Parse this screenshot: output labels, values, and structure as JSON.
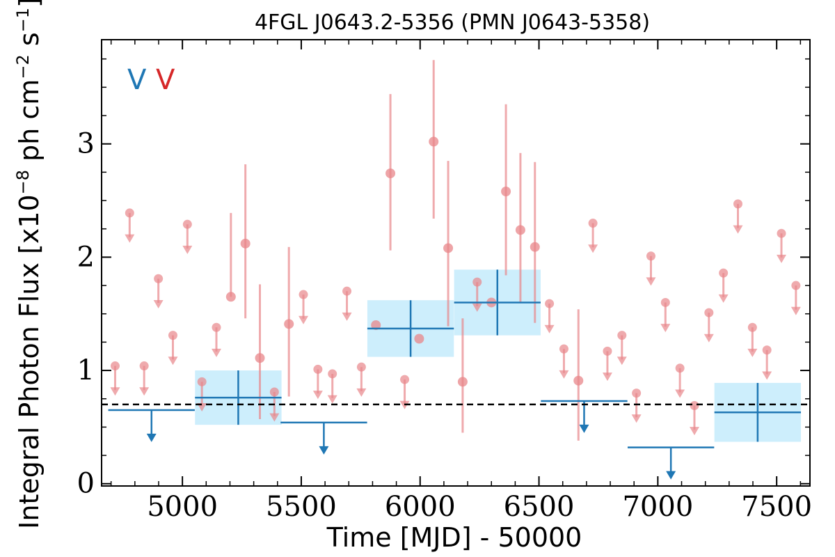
{
  "chart_data": {
    "type": "scatter",
    "title": "4FGL J0643.2-5356 (PMN J0643-5358)",
    "xlabel": "Time [MJD] - 50000",
    "ylabel": "Integral Photon Flux [x10",
    "ylabel_exp1": "−8",
    "ylabel_mid": " ph cm",
    "ylabel_exp2": "−2",
    "ylabel_mid2": " s",
    "ylabel_exp3": "−1",
    "ylabel_end": "]",
    "xlim": [
      4660,
      7640
    ],
    "ylim": [
      -0.02,
      3.92
    ],
    "xticks": [
      5000,
      5500,
      6000,
      6500,
      7000,
      7500
    ],
    "xtick_labels": [
      "5000",
      "5500",
      "6000",
      "6500",
      "7000",
      "7500"
    ],
    "yticks": [
      0,
      1,
      2,
      3
    ],
    "ytick_labels": [
      "0",
      "1",
      "2",
      "3"
    ],
    "grid": false,
    "legend": {
      "position": "top-left",
      "entries": [
        {
          "label": "V",
          "color": "#1f77b4"
        },
        {
          "label": "V",
          "color": "#d62728"
        }
      ]
    },
    "reference_line": {
      "y": 0.7,
      "style": "dashed",
      "color": "#000000"
    },
    "colors": {
      "yearly": "#1f77b4",
      "yearly_band": "#cdeefc",
      "monthly": "#e8868a"
    },
    "series": [
      {
        "cadence": "yearly",
        "points": [
          {
            "x": 5235,
            "xerr": 182,
            "y": 0.76,
            "yerr": 0.24
          },
          {
            "x": 5960,
            "xerr": 182,
            "y": 1.37,
            "yerr": 0.25
          },
          {
            "x": 6325,
            "xerr": 182,
            "y": 1.6,
            "yerr": 0.29
          },
          {
            "x": 7420,
            "xerr": 182,
            "y": 0.63,
            "yerr": 0.26
          }
        ],
        "upper_limits": [
          {
            "x": 4870,
            "xerr": 182,
            "y": 0.65
          },
          {
            "x": 5595,
            "xerr": 182,
            "y": 0.54
          },
          {
            "x": 6690,
            "xerr": 182,
            "y": 0.73
          },
          {
            "x": 7055,
            "xerr": 182,
            "y": 0.32
          }
        ]
      },
      {
        "cadence": "monthly",
        "points": [
          {
            "x": 5204,
            "y": 1.65,
            "err_low": 1.65,
            "err_high": 2.39
          },
          {
            "x": 5265,
            "y": 2.12,
            "err_low": 1.46,
            "err_high": 2.82
          },
          {
            "x": 5326,
            "y": 1.11,
            "err_low": 0.57,
            "err_high": 1.76
          },
          {
            "x": 5448,
            "y": 1.41,
            "err_low": 0.77,
            "err_high": 2.09
          },
          {
            "x": 5814,
            "y": 1.4,
            "err_low": 1.4,
            "err_high": 1.4
          },
          {
            "x": 5875,
            "y": 2.74,
            "err_low": 2.06,
            "err_high": 3.44
          },
          {
            "x": 5996,
            "y": 1.28,
            "err_low": 1.28,
            "err_high": 1.28
          },
          {
            "x": 6057,
            "y": 3.02,
            "err_low": 2.34,
            "err_high": 3.74
          },
          {
            "x": 6118,
            "y": 2.08,
            "err_low": 1.39,
            "err_high": 2.85
          },
          {
            "x": 6179,
            "y": 0.9,
            "err_low": 0.45,
            "err_high": 1.46
          },
          {
            "x": 6300,
            "y": 1.6,
            "err_low": 1.6,
            "err_high": 1.6
          },
          {
            "x": 6361,
            "y": 2.58,
            "err_low": 1.84,
            "err_high": 3.35
          },
          {
            "x": 6422,
            "y": 2.24,
            "err_low": 1.6,
            "err_high": 2.92
          },
          {
            "x": 6483,
            "y": 2.09,
            "err_low": 1.42,
            "err_high": 2.84
          },
          {
            "x": 6666,
            "y": 0.91,
            "err_low": 0.38,
            "err_high": 1.54
          }
        ],
        "upper_limits": [
          {
            "x": 4717,
            "y": 1.04
          },
          {
            "x": 4778,
            "y": 2.39
          },
          {
            "x": 4839,
            "y": 1.04
          },
          {
            "x": 4899,
            "y": 1.81
          },
          {
            "x": 4960,
            "y": 1.31
          },
          {
            "x": 5021,
            "y": 2.29
          },
          {
            "x": 5082,
            "y": 0.9
          },
          {
            "x": 5143,
            "y": 1.38
          },
          {
            "x": 5387,
            "y": 0.81
          },
          {
            "x": 5509,
            "y": 1.67
          },
          {
            "x": 5570,
            "y": 1.01
          },
          {
            "x": 5631,
            "y": 0.97
          },
          {
            "x": 5692,
            "y": 1.7
          },
          {
            "x": 5753,
            "y": 1.03
          },
          {
            "x": 5935,
            "y": 0.92
          },
          {
            "x": 6240,
            "y": 1.78
          },
          {
            "x": 6544,
            "y": 1.59
          },
          {
            "x": 6605,
            "y": 1.19
          },
          {
            "x": 6727,
            "y": 2.3
          },
          {
            "x": 6788,
            "y": 1.17
          },
          {
            "x": 6849,
            "y": 1.31
          },
          {
            "x": 6910,
            "y": 0.8
          },
          {
            "x": 6971,
            "y": 2.01
          },
          {
            "x": 7032,
            "y": 1.6
          },
          {
            "x": 7093,
            "y": 1.02
          },
          {
            "x": 7154,
            "y": 0.69
          },
          {
            "x": 7215,
            "y": 1.51
          },
          {
            "x": 7276,
            "y": 1.86
          },
          {
            "x": 7337,
            "y": 2.47
          },
          {
            "x": 7398,
            "y": 1.38
          },
          {
            "x": 7459,
            "y": 1.18
          },
          {
            "x": 7520,
            "y": 2.21
          },
          {
            "x": 7581,
            "y": 1.75
          }
        ]
      }
    ]
  }
}
